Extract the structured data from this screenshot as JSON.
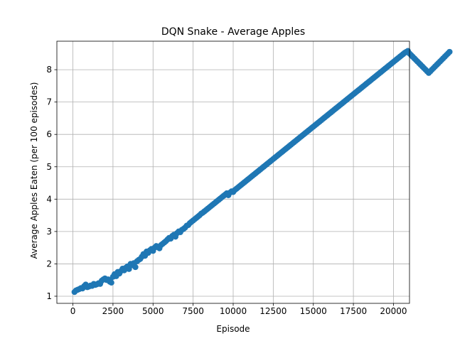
{
  "chart_data": {
    "type": "line",
    "title": "DQN Snake - Average Apples",
    "xlabel": "Episode",
    "ylabel": "Average Apples Eaten (per 100 episodes)",
    "xlim": [
      -1000,
      21000
    ],
    "ylim": [
      0.78,
      8.88
    ],
    "xticks": [
      0,
      2500,
      5000,
      7500,
      10000,
      12500,
      15000,
      17500,
      20000
    ],
    "yticks": [
      1,
      2,
      3,
      4,
      5,
      6,
      7,
      8
    ],
    "grid": true,
    "legend": "none",
    "series_color": "#1f77b4",
    "x_start": 100,
    "x_step": 100,
    "y": [
      1.13,
      1.18,
      1.2,
      1.22,
      1.25,
      1.24,
      1.31,
      1.36,
      1.28,
      1.3,
      1.33,
      1.32,
      1.38,
      1.35,
      1.37,
      1.4,
      1.38,
      1.48,
      1.52,
      1.55,
      1.5,
      1.52,
      1.45,
      1.42,
      1.6,
      1.68,
      1.62,
      1.75,
      1.7,
      1.78,
      1.85,
      1.8,
      1.88,
      1.92,
      1.84,
      2.0,
      1.96,
      2.02,
      1.9,
      2.08,
      2.12,
      2.15,
      2.22,
      2.3,
      2.25,
      2.38,
      2.34,
      2.42,
      2.46,
      2.4,
      2.5,
      2.55,
      2.52,
      2.48,
      2.58,
      2.62,
      2.66,
      2.7,
      2.75,
      2.8,
      2.78,
      2.86,
      2.9,
      2.84,
      2.95,
      3.0,
      2.98,
      3.05,
      3.08,
      3.12,
      3.18,
      3.2,
      3.26,
      3.3,
      3.34,
      3.38,
      3.42,
      3.46,
      3.5,
      3.55,
      3.58,
      3.62,
      3.66,
      3.7,
      3.74,
      3.78,
      3.82,
      3.86,
      3.9,
      3.94,
      3.98,
      4.02,
      4.06,
      4.1,
      4.14,
      4.18,
      4.12,
      4.2,
      4.24,
      4.22,
      4.28,
      4.32,
      4.36,
      4.4,
      4.44,
      4.48,
      4.52,
      4.56,
      4.6,
      4.64,
      4.68,
      4.72,
      4.76,
      4.8,
      4.84,
      4.88,
      4.92,
      4.96,
      5.0,
      5.04,
      5.08,
      5.12,
      5.16,
      5.2,
      5.24,
      5.28,
      5.32,
      5.36,
      5.4,
      5.44,
      5.48,
      5.52,
      5.56,
      5.6,
      5.64,
      5.68,
      5.72,
      5.76,
      5.8,
      5.84,
      5.88,
      5.92,
      5.96,
      6.0,
      6.04,
      6.08,
      6.12,
      6.16,
      6.2,
      6.24,
      6.28,
      6.32,
      6.36,
      6.4,
      6.44,
      6.48,
      6.52,
      6.56,
      6.6,
      6.64,
      6.68,
      6.72,
      6.76,
      6.8,
      6.84,
      6.88,
      6.92,
      6.96,
      7.0,
      7.04,
      7.08,
      7.12,
      7.16,
      7.2,
      7.24,
      7.28,
      7.32,
      7.36,
      7.4,
      7.44,
      7.48,
      7.52,
      7.56,
      7.6,
      7.64,
      7.68,
      7.72,
      7.76,
      7.8,
      7.84,
      7.88,
      7.92,
      7.96,
      8.0,
      8.04,
      8.08,
      8.12,
      8.16,
      8.2,
      8.24,
      8.28,
      8.32,
      8.36,
      8.4,
      8.44,
      8.48,
      8.52,
      8.55,
      8.58,
      8.5,
      8.45,
      8.4,
      8.35,
      8.3,
      8.25,
      8.2,
      8.15,
      8.1,
      8.05,
      8.0,
      7.95,
      7.9,
      7.95,
      8.0,
      8.05,
      8.1,
      8.15,
      8.2,
      8.25,
      8.3,
      8.35,
      8.4,
      8.45,
      8.5,
      8.55
    ]
  }
}
